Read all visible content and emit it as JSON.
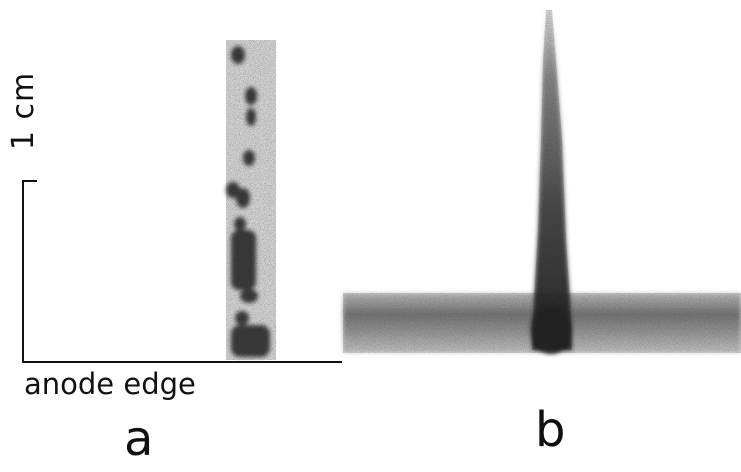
{
  "figure": {
    "scale_bar_label": "1 cm",
    "axis_label": "anode edge",
    "panels": [
      {
        "label": "a"
      },
      {
        "label": "b"
      }
    ]
  }
}
